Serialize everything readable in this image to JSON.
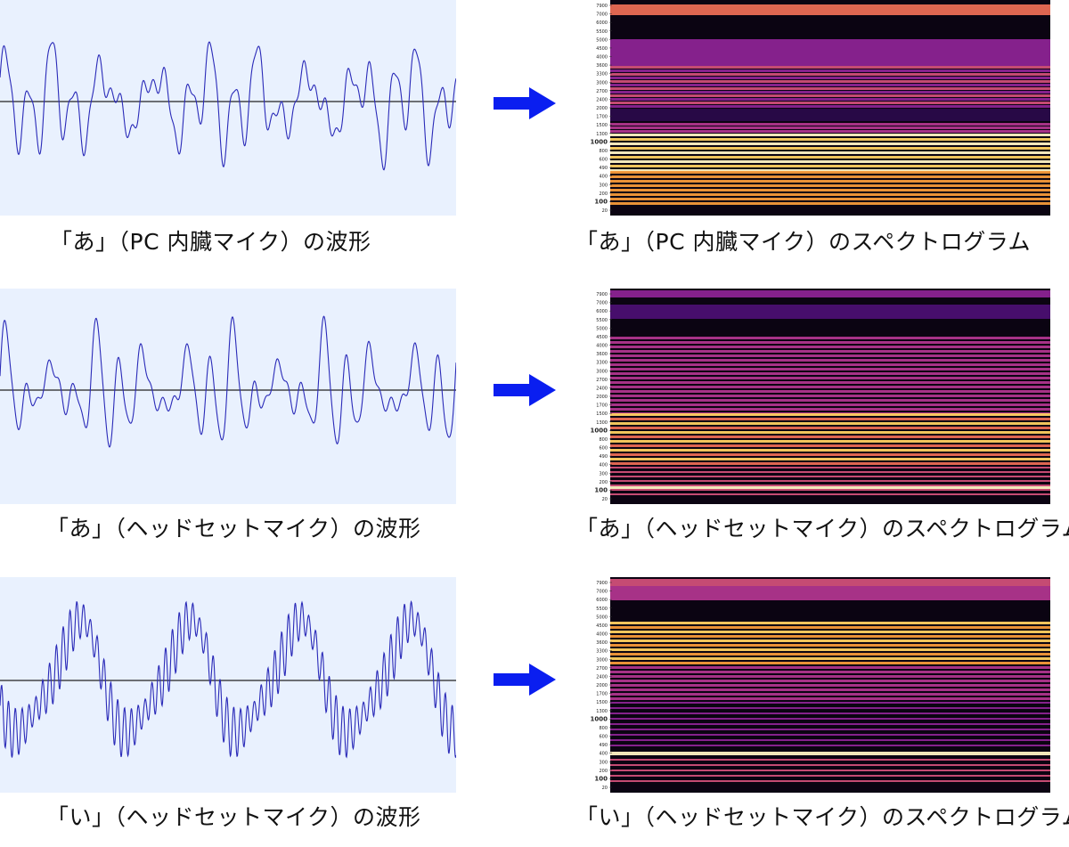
{
  "rows": [
    {
      "wave_caption": "「あ」（PC 内臓マイク）の波形",
      "spec_caption": "「あ」（PC 内臓マイク）のスペクトログラム",
      "freq_ticks": [
        "7900",
        "7000",
        "6000",
        "5500",
        "5000",
        "4500",
        "4000",
        "3600",
        "3300",
        "3000",
        "2700",
        "2400",
        "2000",
        "1700",
        "1500",
        "1300",
        "1000",
        "800",
        "600",
        "490",
        "400",
        "300",
        "200",
        "100",
        "20"
      ]
    },
    {
      "wave_caption": "「あ」（ヘッドセットマイク）の波形",
      "spec_caption": "「あ」（ヘッドセットマイク）のスペクトログラム",
      "freq_ticks": [
        "7900",
        "7000",
        "6000",
        "5500",
        "5000",
        "4500",
        "4000",
        "3600",
        "3300",
        "3000",
        "2700",
        "2400",
        "2000",
        "1700",
        "1500",
        "1300",
        "1000",
        "800",
        "600",
        "490",
        "400",
        "300",
        "200",
        "100",
        "20"
      ]
    },
    {
      "wave_caption": "「い」（ヘッドセットマイク）の波形",
      "spec_caption": "「い」（ヘッドセットマイク）のスペクトログラム",
      "freq_ticks": [
        "7900",
        "7000",
        "6000",
        "5500",
        "5000",
        "4500",
        "4000",
        "3600",
        "3300",
        "3000",
        "2700",
        "2400",
        "2000",
        "1700",
        "1500",
        "1300",
        "1000",
        "800",
        "600",
        "490",
        "400",
        "300",
        "200",
        "100",
        "20"
      ]
    }
  ],
  "colors": {
    "waveform": "#2a2ab8",
    "wave_background": "#e9f1fe",
    "baseline": "#222222",
    "arrow": "#0a1ef0"
  }
}
